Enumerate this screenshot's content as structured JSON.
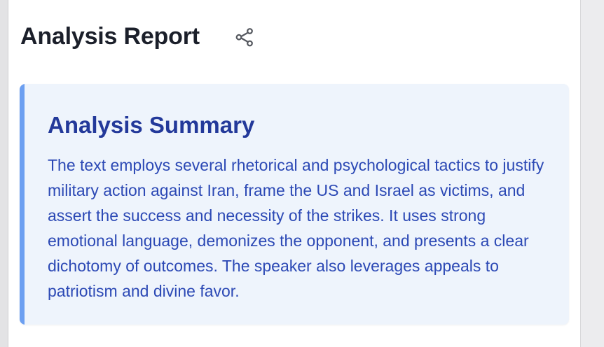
{
  "report": {
    "title": "Analysis Report",
    "share_icon": "share-icon"
  },
  "summary": {
    "heading": "Analysis Summary",
    "body": "The text employs several rhetorical and psychological tactics to justify military action against Iran, frame the US and Israel as victims, and assert the success and necessity of the strikes. It uses strong emotional language, demonizes the opponent, and presents a clear dichotomy of outcomes. The speaker also leverages appeals to patriotism and divine favor."
  },
  "colors": {
    "title_text": "#1b1f2a",
    "card_background": "#eef4fc",
    "card_accent": "#6c9ff1",
    "heading_text": "#23399a",
    "body_text": "#2c49b5"
  }
}
